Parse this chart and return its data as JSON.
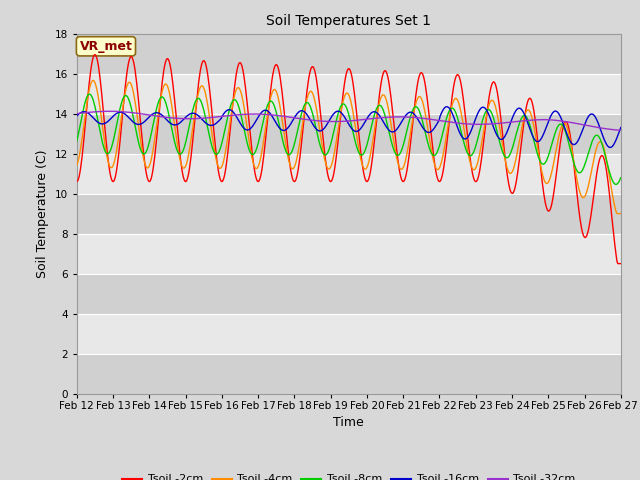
{
  "title": "Soil Temperatures Set 1",
  "xlabel": "Time",
  "ylabel": "Soil Temperature (C)",
  "ylim": [
    0,
    18
  ],
  "yticks": [
    0,
    2,
    4,
    6,
    8,
    10,
    12,
    14,
    16,
    18
  ],
  "x_labels": [
    "Feb 12",
    "Feb 13",
    "Feb 14",
    "Feb 15",
    "Feb 16",
    "Feb 17",
    "Feb 18",
    "Feb 19",
    "Feb 20",
    "Feb 21",
    "Feb 22",
    "Feb 23",
    "Feb 24",
    "Feb 25",
    "Feb 26",
    "Feb 27"
  ],
  "annotation_text": "VR_met",
  "annotation_color": "#8B0000",
  "annotation_bg": "#FFFFCC",
  "annotation_border": "#8B6914",
  "colors": {
    "Tsoil -2cm": "#FF0000",
    "Tsoil -4cm": "#FF8C00",
    "Tsoil -8cm": "#00CC00",
    "Tsoil -16cm": "#0000CC",
    "Tsoil -32cm": "#9932CC"
  },
  "legend_labels": [
    "Tsoil -2cm",
    "Tsoil -4cm",
    "Tsoil -8cm",
    "Tsoil -16cm",
    "Tsoil -32cm"
  ],
  "fig_bg": "#D8D8D8",
  "plot_bg_light": "#E8E8E8",
  "plot_bg_dark": "#D8D8D8",
  "grid_color": "#FFFFFF"
}
